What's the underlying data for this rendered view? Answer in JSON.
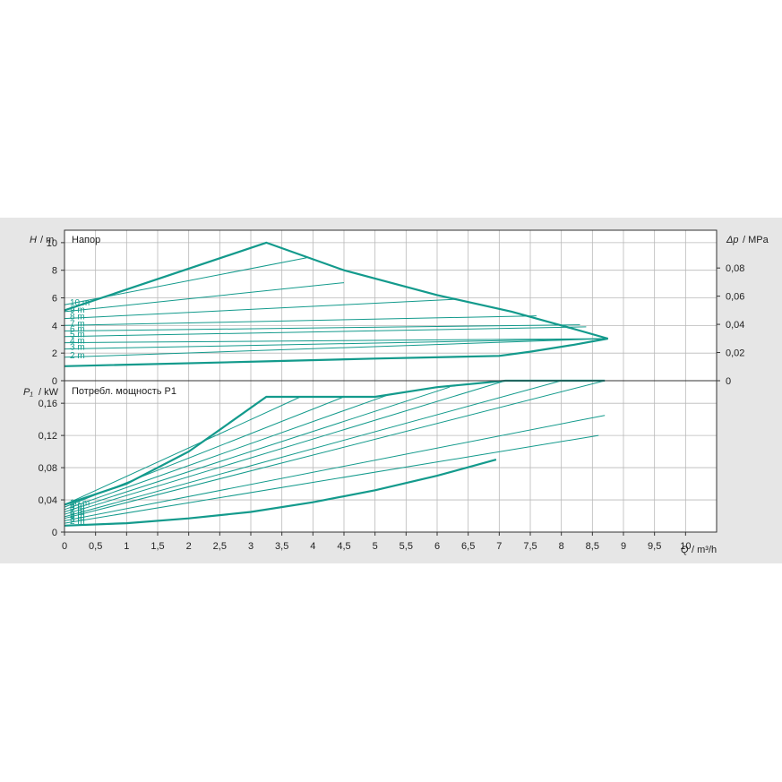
{
  "chart_data": [
    {
      "type": "line",
      "title": "Напор",
      "ylabel_symbol": "H",
      "ylabel_unit": "/ m",
      "y2label_symbol": "Δp",
      "y2label_unit": "/ MPa",
      "ylim": [
        0,
        10.9
      ],
      "yticks": [
        "0",
        "2",
        "4",
        "6",
        "8",
        "10"
      ],
      "y2ticks": [
        "0",
        "0,02",
        "0,04",
        "0,06",
        "0,08"
      ],
      "color": "#139a8c",
      "max_curve": {
        "x": [
          0,
          3.25,
          4.5,
          6.0,
          7.2,
          8.0,
          8.75
        ],
        "y": [
          5.1,
          10.0,
          8.0,
          6.2,
          5.0,
          4.0,
          3.05
        ]
      },
      "min_curve": {
        "x": [
          0,
          3.25,
          5.0,
          7.0,
          7.5,
          8.2,
          8.75
        ],
        "y": [
          1.05,
          1.4,
          1.6,
          1.8,
          2.1,
          2.6,
          3.05
        ]
      },
      "series": [
        {
          "name": "2 m",
          "x": [
            0,
            8.75
          ],
          "y": [
            1.7,
            3.05
          ]
        },
        {
          "name": "3 m",
          "x": [
            0,
            8.75
          ],
          "y": [
            2.3,
            3.05
          ]
        },
        {
          "name": "4 m",
          "x": [
            0,
            8.75
          ],
          "y": [
            2.75,
            3.05
          ]
        },
        {
          "name": "5 m",
          "x": [
            0,
            8.4
          ],
          "y": [
            3.2,
            3.9
          ]
        },
        {
          "name": "6 m",
          "x": [
            0,
            8.3
          ],
          "y": [
            3.6,
            4.05
          ]
        },
        {
          "name": "7 m",
          "x": [
            0,
            7.6
          ],
          "y": [
            4.0,
            4.7
          ]
        },
        {
          "name": "8 m",
          "x": [
            0,
            6.3
          ],
          "y": [
            4.5,
            5.9
          ]
        },
        {
          "name": "9 m",
          "x": [
            0,
            4.5
          ],
          "y": [
            5.0,
            7.1
          ]
        },
        {
          "name": "10 m",
          "x": [
            0,
            3.9
          ],
          "y": [
            5.5,
            8.9
          ]
        }
      ]
    },
    {
      "type": "line",
      "title": "Потребл. мощность P1",
      "ylabel_symbol": "P₁",
      "ylabel_unit": "/ kW",
      "xlabel_symbol": "Q",
      "xlabel_unit": "/ m³/h",
      "ylim": [
        0,
        0.188
      ],
      "xlim": [
        0,
        10.5
      ],
      "yticks": [
        "0",
        "0,04",
        "0,08",
        "0,12",
        "0,16"
      ],
      "xticks": [
        "0",
        "0,5",
        "1",
        "1,5",
        "2",
        "2,5",
        "3",
        "3,5",
        "4",
        "4,5",
        "5",
        "5,5",
        "6",
        "6,5",
        "7",
        "7,5",
        "8",
        "8,5",
        "9",
        "9,5",
        "10"
      ],
      "color": "#139a8c",
      "max_curve": {
        "x": [
          0,
          1,
          2,
          2.5,
          3.25,
          5.0,
          6.0,
          7.1,
          8.7
        ],
        "y": [
          0.034,
          0.06,
          0.1,
          0.127,
          0.168,
          0.168,
          0.18,
          0.188,
          0.188
        ]
      },
      "min_curve": {
        "x": [
          0,
          1,
          2,
          3,
          4,
          5,
          6,
          6.95
        ],
        "y": [
          0.008,
          0.011,
          0.017,
          0.025,
          0.037,
          0.052,
          0.07,
          0.09
        ]
      },
      "series": [
        {
          "name": "2 m",
          "x": [
            0,
            8.6
          ],
          "y": [
            0.011,
            0.12
          ]
        },
        {
          "name": "3 m",
          "x": [
            0,
            8.7
          ],
          "y": [
            0.014,
            0.145
          ]
        },
        {
          "name": "4 m",
          "x": [
            0,
            8.7
          ],
          "y": [
            0.017,
            0.188
          ]
        },
        {
          "name": "5 m",
          "x": [
            0,
            8.0
          ],
          "y": [
            0.019,
            0.188
          ]
        },
        {
          "name": "6 m",
          "x": [
            0,
            7.1
          ],
          "y": [
            0.022,
            0.188
          ]
        },
        {
          "name": "7 m",
          "x": [
            0,
            6.2
          ],
          "y": [
            0.025,
            0.18
          ]
        },
        {
          "name": "8 m",
          "x": [
            0,
            5.2
          ],
          "y": [
            0.028,
            0.17
          ]
        },
        {
          "name": "9 m",
          "x": [
            0,
            4.5
          ],
          "y": [
            0.031,
            0.168
          ]
        },
        {
          "name": "10 m",
          "x": [
            0,
            3.8
          ],
          "y": [
            0.034,
            0.168
          ]
        }
      ]
    }
  ]
}
